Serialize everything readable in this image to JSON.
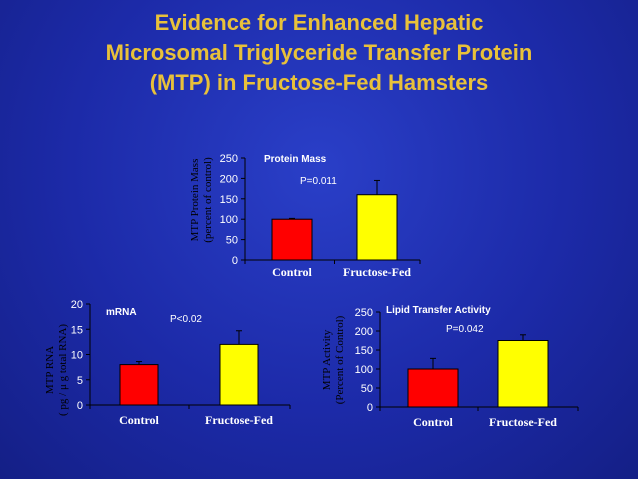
{
  "slide": {
    "title_lines": [
      "Evidence for Enhanced Hepatic",
      "Microsomal Triglyceride Transfer Protein",
      "(MTP) in Fructose-Fed Hamsters"
    ]
  },
  "colors": {
    "background": "#1c2aa8",
    "title": "#e8c13a",
    "control_bar": "#ff0000",
    "fructose_bar": "#ffff00",
    "axis": "#000000"
  },
  "chart_data": [
    {
      "type": "bar",
      "title": "Protein Mass",
      "ylabel": [
        "MTP Protein Mass",
        "(percent of control)"
      ],
      "categories": [
        "Control",
        "Fructose-Fed"
      ],
      "values": [
        100,
        160
      ],
      "errors": [
        2,
        35
      ],
      "ylim": [
        0,
        250
      ],
      "yticks": [
        0,
        50,
        100,
        150,
        200,
        250
      ],
      "annotation": "P=0.011"
    },
    {
      "type": "bar",
      "title": "mRNA",
      "ylabel": [
        "MTP RNA",
        "( pg / μ g  total RNA)"
      ],
      "categories": [
        "Control",
        "Fructose-Fed"
      ],
      "values": [
        8,
        12
      ],
      "errors": [
        0.6,
        2.7
      ],
      "ylim": [
        0,
        20
      ],
      "yticks": [
        0,
        5,
        10,
        15,
        20
      ],
      "annotation": "P<0.02"
    },
    {
      "type": "bar",
      "title": "Lipid Transfer Activity",
      "ylabel": [
        "MTP Activity",
        "(Percent of Control)"
      ],
      "categories": [
        "Control",
        "Fructose-Fed"
      ],
      "values": [
        100,
        175
      ],
      "errors": [
        28,
        15
      ],
      "ylim": [
        0,
        250
      ],
      "yticks": [
        0,
        50,
        100,
        150,
        200,
        250
      ],
      "annotation": "P=0.042"
    }
  ]
}
